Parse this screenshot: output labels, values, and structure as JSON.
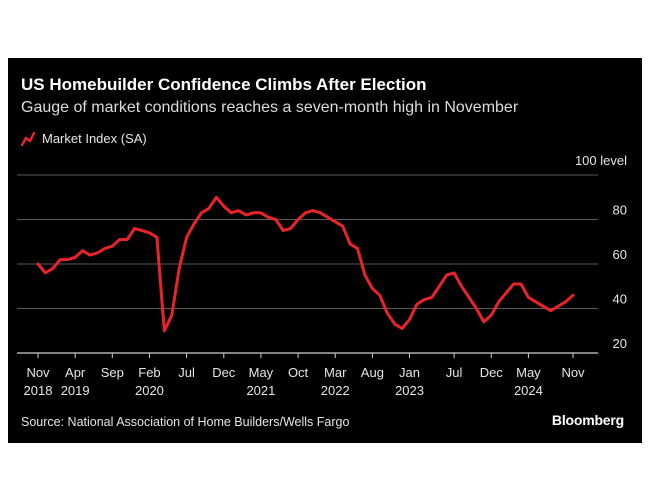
{
  "title": "US Homebuilder Confidence Climbs After Election",
  "subtitle": "Gauge of market conditions reaches a seven-month high in November",
  "source": "Source: National Association of Home Builders/Wells Fargo",
  "brand": "Bloomberg",
  "colors": {
    "background": "#000000",
    "line": "#e8232a",
    "grid": "#5a5a5a",
    "text": "#e6e6e6"
  },
  "chart_data": {
    "type": "line",
    "title": "US Homebuilder Confidence Climbs After Election",
    "subtitle": "Gauge of market conditions reaches a seven-month high in November",
    "unit_label": "100 level",
    "legend": [
      "Market Index (SA)"
    ],
    "ylim": [
      20,
      100
    ],
    "yticks": [
      20,
      40,
      60,
      80
    ],
    "x_start": "2018-11",
    "x_end": "2024-11",
    "xticks": [
      {
        "month": "Nov",
        "year": "2018"
      },
      {
        "month": "Apr",
        "year": "2019"
      },
      {
        "month": "Sep",
        "year": ""
      },
      {
        "month": "Feb",
        "year": "2020"
      },
      {
        "month": "Jul",
        "year": ""
      },
      {
        "month": "Dec",
        "year": ""
      },
      {
        "month": "May",
        "year": "2021"
      },
      {
        "month": "Oct",
        "year": ""
      },
      {
        "month": "Mar",
        "year": "2022"
      },
      {
        "month": "Aug",
        "year": ""
      },
      {
        "month": "Jan",
        "year": "2023"
      },
      {
        "month": "Jul",
        "year": ""
      },
      {
        "month": "Dec",
        "year": ""
      },
      {
        "month": "May",
        "year": "2024"
      },
      {
        "month": "Nov",
        "year": ""
      }
    ],
    "series": [
      {
        "name": "Market Index (SA)",
        "values": [
          60,
          56,
          58,
          62,
          62,
          63,
          66,
          64,
          65,
          67,
          68,
          71,
          71,
          76,
          75,
          74,
          72,
          30,
          37,
          58,
          72,
          78,
          83,
          85,
          90,
          86,
          83,
          84,
          82,
          83,
          83,
          81,
          80,
          75,
          76,
          80,
          83,
          84,
          83,
          81,
          79,
          77,
          69,
          67,
          55,
          49,
          46,
          38,
          33,
          31,
          35,
          42,
          44,
          45,
          50,
          55,
          56,
          50,
          45,
          40,
          34,
          37,
          43,
          47,
          51,
          51,
          45,
          43,
          41,
          39,
          41,
          43,
          46
        ]
      }
    ]
  }
}
